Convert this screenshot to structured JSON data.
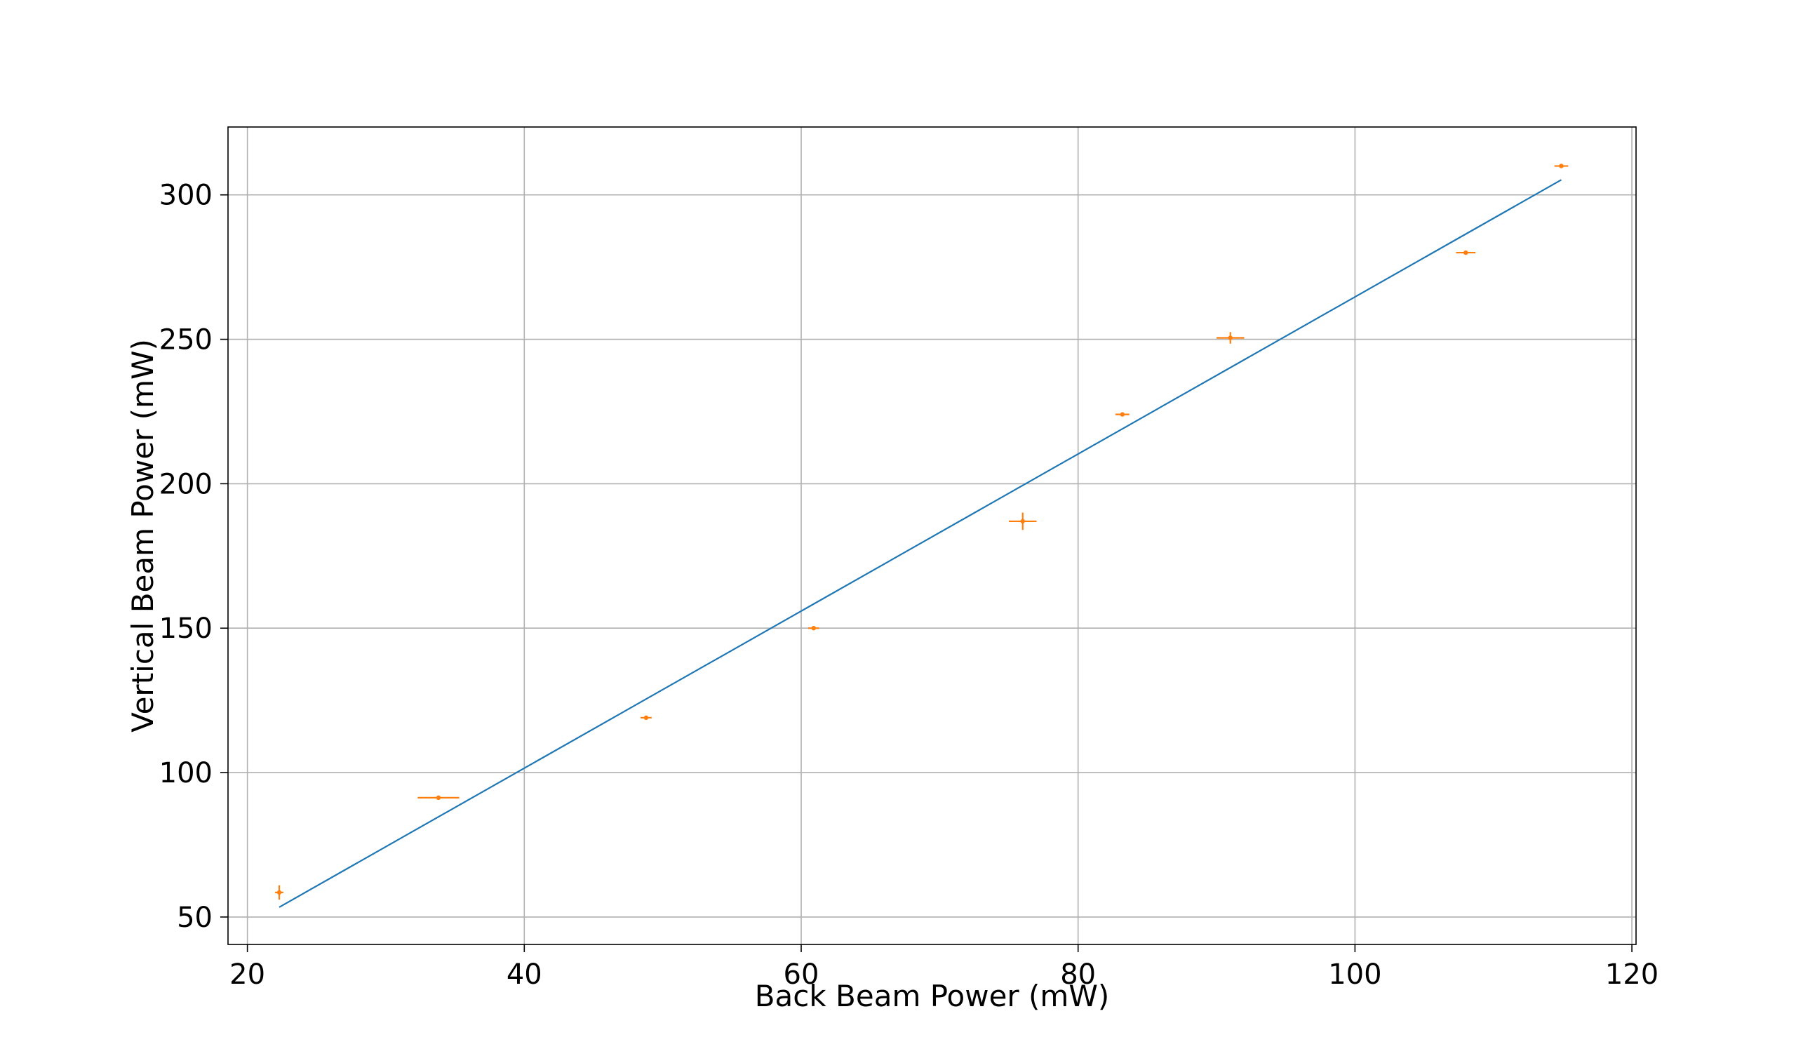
{
  "chart_data": {
    "type": "scatter",
    "title": "",
    "xlabel": "Back Beam Power (mW)",
    "ylabel": "Vertical Beam Power (mW)",
    "xlim": [
      18.6,
      120.3
    ],
    "ylim": [
      40.5,
      323.5
    ],
    "xticks": [
      20,
      40,
      60,
      80,
      100,
      120
    ],
    "yticks": [
      50,
      100,
      150,
      200,
      250,
      300
    ],
    "grid": true,
    "legend": "none",
    "colors": {
      "fit": "#1f77b4",
      "data": "#ff7f0e"
    },
    "series": [
      {
        "kind": "errorbar",
        "points": [
          {
            "x": 22.3,
            "y": 58.5,
            "xerr": 0.3,
            "yerr": 2.5
          },
          {
            "x": 33.8,
            "y": 91.3,
            "xerr": 1.5,
            "yerr": 0.5
          },
          {
            "x": 48.8,
            "y": 119.0,
            "xerr": 0.4,
            "yerr": 0.5
          },
          {
            "x": 60.9,
            "y": 150.0,
            "xerr": 0.4,
            "yerr": 0.5
          },
          {
            "x": 76.0,
            "y": 187.0,
            "xerr": 1.0,
            "yerr": 3.0
          },
          {
            "x": 83.2,
            "y": 224.0,
            "xerr": 0.5,
            "yerr": 0.5
          },
          {
            "x": 91.0,
            "y": 250.5,
            "xerr": 1.0,
            "yerr": 2.0
          },
          {
            "x": 108.0,
            "y": 280.0,
            "xerr": 0.7,
            "yerr": 0.5
          },
          {
            "x": 114.9,
            "y": 310.0,
            "xerr": 0.5,
            "yerr": 0.5
          }
        ]
      },
      {
        "kind": "line",
        "x": [
          22.3,
          114.9
        ],
        "y": [
          53.4,
          305.2
        ]
      }
    ]
  }
}
